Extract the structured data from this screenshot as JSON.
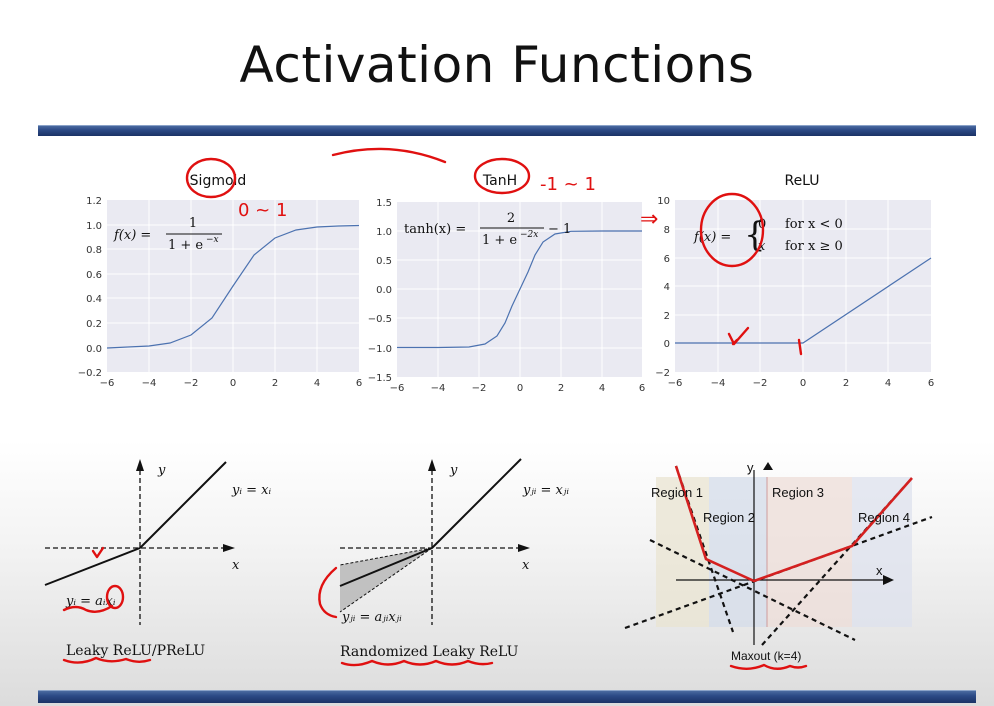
{
  "slide": {
    "title": "Activation Functions"
  },
  "plots": [
    {
      "title": "Sigmoid",
      "formula_lhs": "f(x) =",
      "formula_num": "1",
      "formula_den": "1 + e",
      "formula_den_sup": "−x",
      "x_ticks": [
        "−6",
        "−4",
        "−2",
        "0",
        "2",
        "4",
        "6"
      ],
      "y_ticks": [
        "1.2",
        "1.0",
        "0.8",
        "0.6",
        "0.4",
        "0.2",
        "0.0",
        "−0.2"
      ]
    },
    {
      "title": "TanH",
      "formula_lhs": "tanh(x) =",
      "formula_num": "2",
      "formula_den": "1 + e",
      "formula_den_sup": "−2x",
      "formula_tail": "− 1",
      "x_ticks": [
        "−6",
        "−4",
        "−2",
        "0",
        "2",
        "4",
        "6"
      ],
      "y_ticks": [
        "1.5",
        "1.0",
        "0.5",
        "0.0",
        "−0.5",
        "−1.0",
        "−1.5"
      ]
    },
    {
      "title": "ReLU",
      "formula_lhs": "f(x) =",
      "case1_val": "0",
      "case1_cond": "for   x < 0",
      "case2_val": "x",
      "case2_cond": "for   x ≥ 0",
      "x_ticks": [
        "−6",
        "−4",
        "−2",
        "0",
        "2",
        "4",
        "6"
      ],
      "y_ticks": [
        "10",
        "8",
        "6",
        "4",
        "2",
        "0",
        "−2"
      ]
    }
  ],
  "diagrams": {
    "leaky": {
      "y_label": "y",
      "x_label": "x",
      "pos_eq": "yᵢ = xᵢ",
      "neg_eq": "yᵢ = aᵢxᵢ",
      "caption": "Leaky ReLU/PReLU"
    },
    "randomized": {
      "y_label": "y",
      "x_label": "x",
      "pos_eq": "yⱼᵢ = xⱼᵢ",
      "neg_eq": "yⱼᵢ = aⱼᵢxⱼᵢ",
      "caption": "Randomized Leaky ReLU"
    },
    "maxout": {
      "y_label": "y",
      "x_label": "x",
      "regions": [
        "Region 1",
        "Region 2",
        "Region 3",
        "Region 4"
      ],
      "caption": "Maxout (k=4)"
    }
  },
  "handwriting": {
    "sigmoid_note": "0 ~ 1",
    "tanh_note": "-1 ~ 1",
    "relu_arrow": "⇒",
    "relu_check": "✓",
    "relu_mark": "|"
  },
  "colors": {
    "curve": "#4c72b0",
    "plot_bg": "#eaeaf2",
    "annotation_red": "#e01010",
    "maxout_red": "#d42020",
    "bar_blue": "#2c4a86"
  }
}
